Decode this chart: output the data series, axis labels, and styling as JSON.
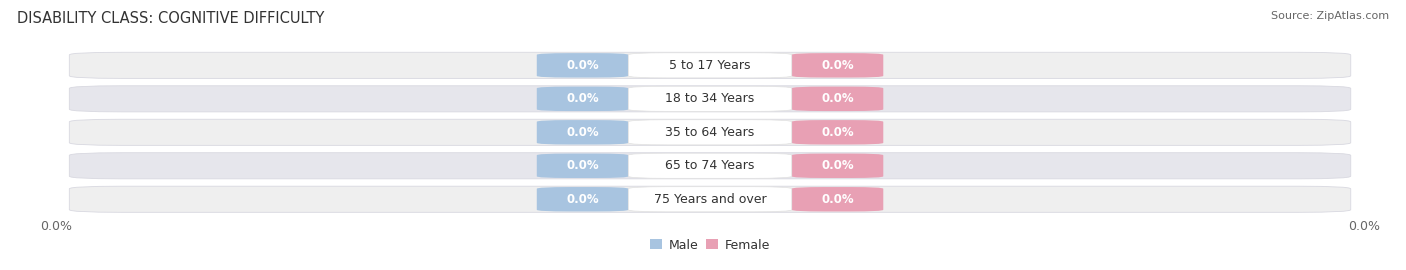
{
  "title": "DISABILITY CLASS: COGNITIVE DIFFICULTY",
  "source": "Source: ZipAtlas.com",
  "categories": [
    "5 to 17 Years",
    "18 to 34 Years",
    "35 to 64 Years",
    "65 to 74 Years",
    "75 Years and over"
  ],
  "male_values": [
    0.0,
    0.0,
    0.0,
    0.0,
    0.0
  ],
  "female_values": [
    0.0,
    0.0,
    0.0,
    0.0,
    0.0
  ],
  "male_color": "#a8c4e0",
  "female_color": "#e8a0b4",
  "row_bg_colors": [
    "#efefef",
    "#e6e6ec"
  ],
  "row_border_color": "#d8d8e0",
  "center_pill_color": "#ffffff",
  "center_pill_edge": "#e0e0e0",
  "title_fontsize": 10.5,
  "source_fontsize": 8,
  "category_fontsize": 9,
  "value_fontsize": 8.5,
  "legend_fontsize": 9,
  "background_color": "#ffffff",
  "x_tick_label_left": "0.0%",
  "x_tick_label_right": "0.0%",
  "tick_fontsize": 9
}
